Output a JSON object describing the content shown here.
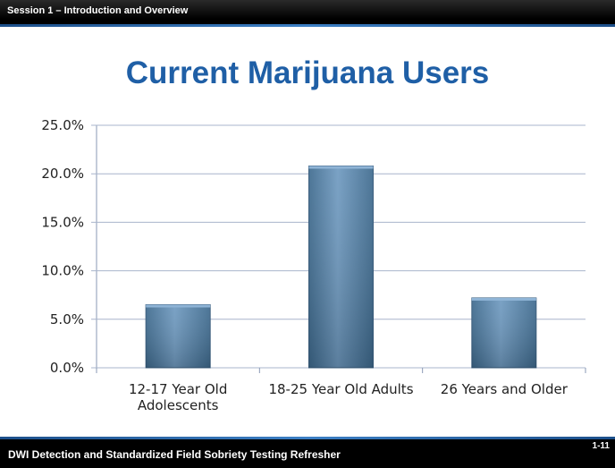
{
  "header": {
    "session": "Session 1 – Introduction and Overview"
  },
  "slide": {
    "title": "Current Marijuana Users"
  },
  "footer": {
    "course": "DWI Detection and Standardized Field Sobriety Testing Refresher",
    "page": "1-11"
  },
  "colors": {
    "bar": "#4f7fa6",
    "bar_dark": "#3c6688",
    "title": "#1f5fa6",
    "grid": "#a8b4cc"
  },
  "chart_data": {
    "type": "bar",
    "categories": [
      [
        "12-17 Year Old",
        "Adolescents"
      ],
      [
        "18-25 Year Old Adults"
      ],
      [
        "26 Years and Older"
      ]
    ],
    "values": [
      6.5,
      20.8,
      7.2
    ],
    "ylim": [
      0,
      25
    ],
    "yticks": [
      "0.0%",
      "5.0%",
      "10.0%",
      "15.0%",
      "20.0%",
      "25.0%"
    ],
    "grid": true,
    "legend": "none"
  }
}
